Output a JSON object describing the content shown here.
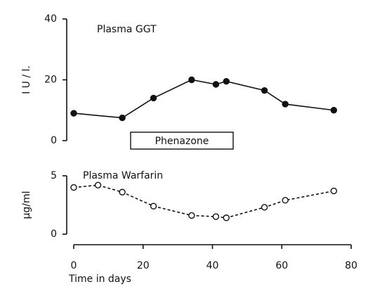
{
  "chart_data": [
    {
      "type": "line",
      "title": "Plasma GGT",
      "ylabel": "I U / l.",
      "x": [
        0,
        14,
        23,
        34,
        41,
        44,
        55,
        61,
        75
      ],
      "values": [
        9,
        7.5,
        14,
        20,
        18.5,
        19.5,
        16.5,
        12,
        10
      ],
      "ylim": [
        0,
        40
      ],
      "yticks": [
        0,
        20,
        40
      ],
      "color": "#111111",
      "marker": "filled",
      "linestyle": "solid",
      "annotation": "Phenazone"
    },
    {
      "type": "line",
      "title": "Plasma Warfarin",
      "ylabel": "µg/ml",
      "xlabel": "Time in days",
      "x": [
        0,
        7,
        14,
        23,
        34,
        41,
        44,
        55,
        61,
        75
      ],
      "values": [
        4.0,
        4.2,
        3.6,
        2.4,
        1.6,
        1.5,
        1.4,
        2.3,
        2.9,
        3.7
      ],
      "xlim": [
        0,
        80
      ],
      "xticks": [
        0,
        20,
        40,
        60,
        80
      ],
      "ylim": [
        0,
        5
      ],
      "yticks": [
        0,
        5
      ],
      "color": "#111111",
      "marker": "open",
      "linestyle": "dashed"
    }
  ]
}
